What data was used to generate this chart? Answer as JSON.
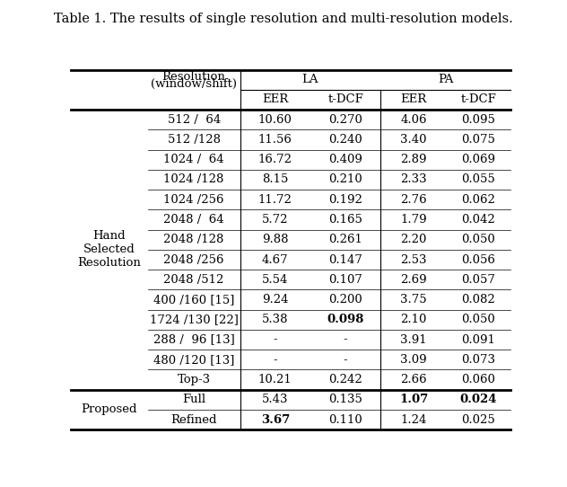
{
  "title": "Table 1. The results of single resolution and multi-resolution models.",
  "rows": [
    [
      "512 /  64",
      "10.60",
      "0.270",
      "4.06",
      "0.095"
    ],
    [
      "512 /128",
      "11.56",
      "0.240",
      "3.40",
      "0.075"
    ],
    [
      "1024 /  64",
      "16.72",
      "0.409",
      "2.89",
      "0.069"
    ],
    [
      "1024 /128",
      "8.15",
      "0.210",
      "2.33",
      "0.055"
    ],
    [
      "1024 /256",
      "11.72",
      "0.192",
      "2.76",
      "0.062"
    ],
    [
      "2048 /  64",
      "5.72",
      "0.165",
      "1.79",
      "0.042"
    ],
    [
      "2048 /128",
      "9.88",
      "0.261",
      "2.20",
      "0.050"
    ],
    [
      "2048 /256",
      "4.67",
      "0.147",
      "2.53",
      "0.056"
    ],
    [
      "2048 /512",
      "5.54",
      "0.107",
      "2.69",
      "0.057"
    ],
    [
      "400 /160 [15]",
      "9.24",
      "0.200",
      "3.75",
      "0.082"
    ],
    [
      "1724 /130 [22]",
      "5.38",
      "**0.098**",
      "2.10",
      "0.050"
    ],
    [
      "288 /  96 [13]",
      "-",
      "-",
      "3.91",
      "0.091"
    ],
    [
      "480 /120 [13]",
      "-",
      "-",
      "3.09",
      "0.073"
    ],
    [
      "Top-3",
      "10.21",
      "0.242",
      "2.66",
      "0.060"
    ]
  ],
  "proposed_rows": [
    [
      "Full",
      "5.43",
      "0.135",
      "**1.07**",
      "**0.024**"
    ],
    [
      "Refined",
      "**3.67**",
      "0.110",
      "1.24",
      "0.025"
    ]
  ],
  "bg_color": "#ffffff",
  "font_size": 9.5,
  "title_font_size": 10.5
}
